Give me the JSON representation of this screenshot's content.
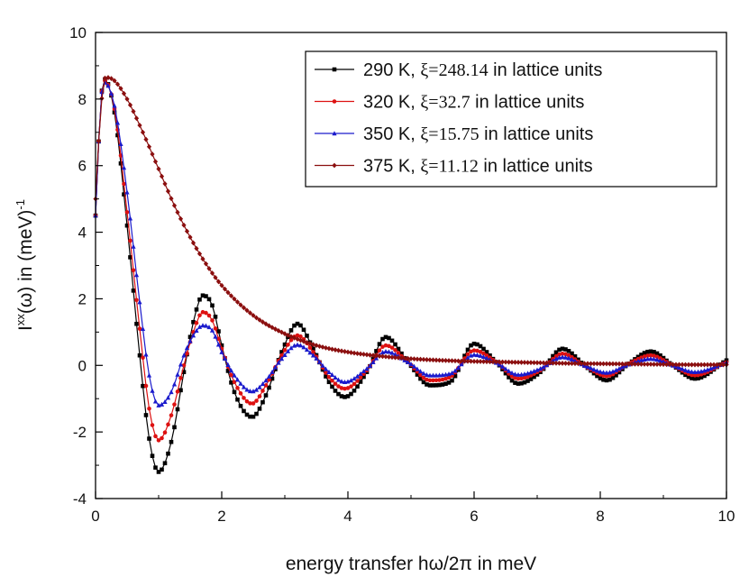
{
  "chart_data": {
    "type": "line",
    "title": "",
    "xlabel": "energy transfer hω/2π in meV",
    "ylabel": {
      "base": "I",
      "sup1": "xx",
      "mid": "(ω) in (meV)",
      "sup2": "-1"
    },
    "xlim": [
      0,
      10
    ],
    "ylim": [
      -4,
      10
    ],
    "x_ticks": [
      0,
      2,
      4,
      6,
      8,
      10
    ],
    "x_tick_labels": [
      "0",
      "2",
      "4",
      "6",
      "8",
      "10"
    ],
    "y_ticks": [
      -4,
      -2,
      0,
      2,
      4,
      6,
      8,
      10
    ],
    "y_tick_labels": [
      "-4",
      "-2",
      "0",
      "2",
      "4",
      "6",
      "8",
      "10"
    ],
    "grid": false,
    "legend_position": "top-right",
    "series": [
      {
        "name": "290 K",
        "legend_prefix": "290 K, ",
        "legend_xi": "ξ=248.14",
        "legend_suffix": " in lattice units",
        "color": "#000000",
        "marker": "square",
        "x": [
          0.0,
          0.08,
          0.14,
          0.3,
          0.5,
          0.7,
          0.85,
          1.0,
          1.2,
          1.4,
          1.55,
          1.7,
          1.85,
          2.0,
          2.2,
          2.48,
          2.7,
          2.95,
          3.2,
          3.45,
          3.7,
          3.95,
          4.3,
          4.6,
          4.95,
          5.3,
          5.62,
          6.0,
          6.35,
          6.7,
          7.05,
          7.4,
          7.78,
          8.1,
          8.45,
          8.8,
          9.15,
          9.5,
          10.0
        ],
        "values": [
          4.5,
          7.8,
          8.6,
          7.6,
          4.2,
          0.3,
          -2.2,
          -3.2,
          -2.3,
          -0.2,
          1.3,
          2.1,
          1.8,
          0.6,
          -0.8,
          -1.55,
          -0.9,
          0.4,
          1.25,
          0.5,
          -0.5,
          -0.95,
          -0.2,
          0.85,
          0.1,
          -0.6,
          -0.5,
          0.65,
          0.1,
          -0.55,
          -0.2,
          0.5,
          -0.05,
          -0.45,
          0.05,
          0.42,
          0.0,
          -0.4,
          0.15
        ]
      },
      {
        "name": "320 K",
        "legend_prefix": "320 K, ",
        "legend_xi": "ξ=32.7",
        "legend_suffix": " in lattice units",
        "color": "#dd1111",
        "marker": "dot",
        "x": [
          0.0,
          0.08,
          0.14,
          0.3,
          0.5,
          0.7,
          0.85,
          1.0,
          1.2,
          1.4,
          1.55,
          1.7,
          1.85,
          2.0,
          2.2,
          2.48,
          2.7,
          2.95,
          3.2,
          3.45,
          3.7,
          3.95,
          4.3,
          4.6,
          4.95,
          5.3,
          5.62,
          6.0,
          6.35,
          6.7,
          7.05,
          7.4,
          7.78,
          8.1,
          8.45,
          8.8,
          9.15,
          9.5,
          10.0
        ],
        "values": [
          4.5,
          7.8,
          8.55,
          7.7,
          4.6,
          1.1,
          -1.3,
          -2.25,
          -1.5,
          0.0,
          1.0,
          1.6,
          1.35,
          0.5,
          -0.5,
          -1.15,
          -0.6,
          0.3,
          0.9,
          0.4,
          -0.35,
          -0.7,
          -0.15,
          0.6,
          0.1,
          -0.45,
          -0.35,
          0.45,
          0.1,
          -0.4,
          -0.15,
          0.35,
          -0.05,
          -0.32,
          0.05,
          0.3,
          0.0,
          -0.3,
          0.1
        ]
      },
      {
        "name": "350 K",
        "legend_prefix": "350 K, ",
        "legend_xi": "ξ=15.75",
        "legend_suffix": " in lattice units",
        "color": "#1a1acc",
        "marker": "triangle",
        "x": [
          0.0,
          0.08,
          0.14,
          0.3,
          0.5,
          0.7,
          0.85,
          1.0,
          1.2,
          1.4,
          1.55,
          1.7,
          1.85,
          2.0,
          2.2,
          2.48,
          2.7,
          2.95,
          3.2,
          3.45,
          3.7,
          3.95,
          4.3,
          4.6,
          4.95,
          5.3,
          5.62,
          6.0,
          6.35,
          6.7,
          7.05,
          7.4,
          7.78,
          8.1,
          8.45,
          8.8,
          9.15,
          9.5,
          10.0
        ],
        "values": [
          4.5,
          7.8,
          8.5,
          7.8,
          5.2,
          1.9,
          -0.3,
          -1.2,
          -0.8,
          0.3,
          0.9,
          1.2,
          1.05,
          0.4,
          -0.3,
          -0.78,
          -0.45,
          0.2,
          0.62,
          0.3,
          -0.2,
          -0.5,
          -0.1,
          0.42,
          0.1,
          -0.3,
          -0.25,
          0.32,
          0.08,
          -0.28,
          -0.1,
          0.25,
          -0.03,
          -0.22,
          0.03,
          0.2,
          0.0,
          -0.2,
          0.08
        ]
      },
      {
        "name": "375 K",
        "legend_prefix": "375 K, ",
        "legend_xi": "ξ=11.12",
        "legend_suffix": " in lattice units",
        "color": "#8b0f0f",
        "marker": "diamond",
        "x": [
          0.0,
          0.08,
          0.16,
          0.3,
          0.5,
          0.75,
          1.0,
          1.25,
          1.5,
          1.75,
          2.0,
          2.5,
          3.0,
          3.5,
          4.0,
          4.5,
          5.0,
          5.5,
          6.0,
          6.5,
          7.0,
          7.5,
          8.0,
          8.5,
          9.0,
          9.5,
          10.0
        ],
        "values": [
          5.0,
          7.6,
          8.65,
          8.55,
          8.0,
          7.0,
          5.9,
          4.8,
          3.85,
          3.05,
          2.4,
          1.5,
          0.95,
          0.6,
          0.4,
          0.28,
          0.2,
          0.15,
          0.12,
          0.1,
          0.08,
          0.06,
          0.05,
          0.04,
          0.03,
          0.02,
          0.02
        ]
      }
    ]
  }
}
